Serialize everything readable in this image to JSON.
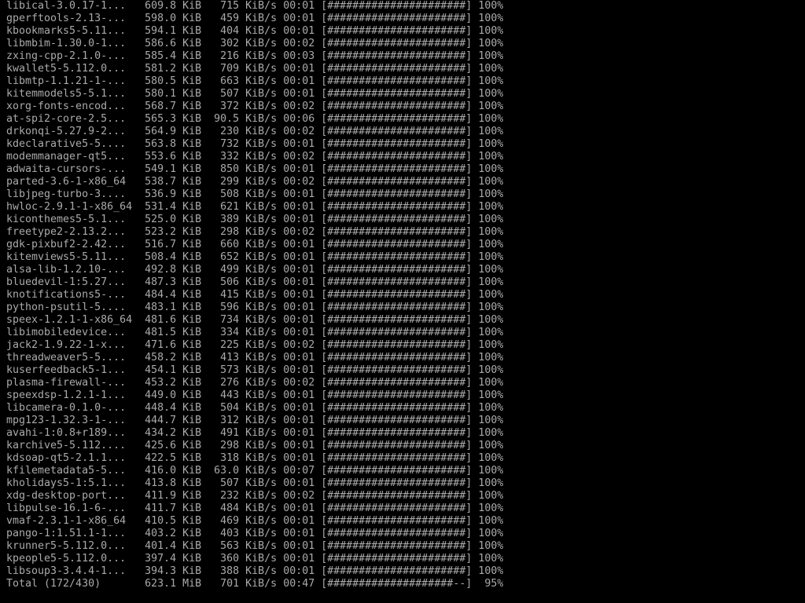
{
  "terminal": {
    "fg_color": "#aaaaaa",
    "bg_color": "#000000",
    "rows": [
      {
        "name": "libical-3.0.17-1...",
        "size": "609.8 KiB",
        "rate": "715 KiB/s",
        "time": "00:01",
        "percent": 100
      },
      {
        "name": "gperftools-2.13-...",
        "size": "598.0 KiB",
        "rate": "459 KiB/s",
        "time": "00:01",
        "percent": 100
      },
      {
        "name": "kbookmarks5-5.11...",
        "size": "594.1 KiB",
        "rate": "404 KiB/s",
        "time": "00:01",
        "percent": 100
      },
      {
        "name": "libmbim-1.30.0-1...",
        "size": "586.6 KiB",
        "rate": "302 KiB/s",
        "time": "00:02",
        "percent": 100
      },
      {
        "name": "zxing-cpp-2.1.0-...",
        "size": "585.4 KiB",
        "rate": "216 KiB/s",
        "time": "00:03",
        "percent": 100
      },
      {
        "name": "kwallet5-5.112.0...",
        "size": "581.2 KiB",
        "rate": "709 KiB/s",
        "time": "00:01",
        "percent": 100
      },
      {
        "name": "libmtp-1.1.21-1-...",
        "size": "580.5 KiB",
        "rate": "663 KiB/s",
        "time": "00:01",
        "percent": 100
      },
      {
        "name": "kitemmodels5-5.1...",
        "size": "580.1 KiB",
        "rate": "507 KiB/s",
        "time": "00:01",
        "percent": 100
      },
      {
        "name": "xorg-fonts-encod...",
        "size": "568.7 KiB",
        "rate": "372 KiB/s",
        "time": "00:02",
        "percent": 100
      },
      {
        "name": "at-spi2-core-2.5...",
        "size": "565.3 KiB",
        "rate": "90.5 KiB/s",
        "time": "00:06",
        "percent": 100
      },
      {
        "name": "drkonqi-5.27.9-2...",
        "size": "564.9 KiB",
        "rate": "230 KiB/s",
        "time": "00:02",
        "percent": 100
      },
      {
        "name": "kdeclarative5-5....",
        "size": "563.8 KiB",
        "rate": "732 KiB/s",
        "time": "00:01",
        "percent": 100
      },
      {
        "name": "modemmanager-qt5...",
        "size": "553.6 KiB",
        "rate": "332 KiB/s",
        "time": "00:02",
        "percent": 100
      },
      {
        "name": "adwaita-cursors-...",
        "size": "549.1 KiB",
        "rate": "850 KiB/s",
        "time": "00:01",
        "percent": 100
      },
      {
        "name": "parted-3.6-1-x86_64",
        "size": "538.7 KiB",
        "rate": "299 KiB/s",
        "time": "00:02",
        "percent": 100
      },
      {
        "name": "libjpeg-turbo-3....",
        "size": "536.9 KiB",
        "rate": "508 KiB/s",
        "time": "00:01",
        "percent": 100
      },
      {
        "name": "hwloc-2.9.1-1-x86_64",
        "size": "531.4 KiB",
        "rate": "621 KiB/s",
        "time": "00:01",
        "percent": 100
      },
      {
        "name": "kiconthemes5-5.1...",
        "size": "525.0 KiB",
        "rate": "389 KiB/s",
        "time": "00:01",
        "percent": 100
      },
      {
        "name": "freetype2-2.13.2...",
        "size": "523.2 KiB",
        "rate": "298 KiB/s",
        "time": "00:02",
        "percent": 100
      },
      {
        "name": "gdk-pixbuf2-2.42...",
        "size": "516.7 KiB",
        "rate": "660 KiB/s",
        "time": "00:01",
        "percent": 100
      },
      {
        "name": "kitemviews5-5.11...",
        "size": "508.4 KiB",
        "rate": "652 KiB/s",
        "time": "00:01",
        "percent": 100
      },
      {
        "name": "alsa-lib-1.2.10-...",
        "size": "492.8 KiB",
        "rate": "499 KiB/s",
        "time": "00:01",
        "percent": 100
      },
      {
        "name": "bluedevil-1:5.27...",
        "size": "487.3 KiB",
        "rate": "506 KiB/s",
        "time": "00:01",
        "percent": 100
      },
      {
        "name": "knotifications5-...",
        "size": "484.4 KiB",
        "rate": "415 KiB/s",
        "time": "00:01",
        "percent": 100
      },
      {
        "name": "python-psutil-5....",
        "size": "483.1 KiB",
        "rate": "596 KiB/s",
        "time": "00:01",
        "percent": 100
      },
      {
        "name": "speex-1.2.1-1-x86_64",
        "size": "481.6 KiB",
        "rate": "734 KiB/s",
        "time": "00:01",
        "percent": 100
      },
      {
        "name": "libimobiledevice...",
        "size": "481.5 KiB",
        "rate": "334 KiB/s",
        "time": "00:01",
        "percent": 100
      },
      {
        "name": "jack2-1.9.22-1-x...",
        "size": "471.6 KiB",
        "rate": "225 KiB/s",
        "time": "00:02",
        "percent": 100
      },
      {
        "name": "threadweaver5-5....",
        "size": "458.2 KiB",
        "rate": "413 KiB/s",
        "time": "00:01",
        "percent": 100
      },
      {
        "name": "kuserfeedback5-1...",
        "size": "454.1 KiB",
        "rate": "573 KiB/s",
        "time": "00:01",
        "percent": 100
      },
      {
        "name": "plasma-firewall-...",
        "size": "453.2 KiB",
        "rate": "276 KiB/s",
        "time": "00:02",
        "percent": 100
      },
      {
        "name": "speexdsp-1.2.1-1...",
        "size": "449.0 KiB",
        "rate": "443 KiB/s",
        "time": "00:01",
        "percent": 100
      },
      {
        "name": "libcamera-0.1.0-...",
        "size": "448.4 KiB",
        "rate": "504 KiB/s",
        "time": "00:01",
        "percent": 100
      },
      {
        "name": "mpg123-1.32.3-1-...",
        "size": "444.7 KiB",
        "rate": "312 KiB/s",
        "time": "00:01",
        "percent": 100
      },
      {
        "name": "avahi-1:0.8+r189...",
        "size": "434.2 KiB",
        "rate": "491 KiB/s",
        "time": "00:01",
        "percent": 100
      },
      {
        "name": "karchive5-5.112....",
        "size": "425.6 KiB",
        "rate": "298 KiB/s",
        "time": "00:01",
        "percent": 100
      },
      {
        "name": "kdsoap-qt5-2.1.1...",
        "size": "422.5 KiB",
        "rate": "318 KiB/s",
        "time": "00:01",
        "percent": 100
      },
      {
        "name": "kfilemetadata5-5...",
        "size": "416.0 KiB",
        "rate": "63.0 KiB/s",
        "time": "00:07",
        "percent": 100
      },
      {
        "name": "kholidays5-1:5.1...",
        "size": "413.8 KiB",
        "rate": "507 KiB/s",
        "time": "00:01",
        "percent": 100
      },
      {
        "name": "xdg-desktop-port...",
        "size": "411.9 KiB",
        "rate": "232 KiB/s",
        "time": "00:02",
        "percent": 100
      },
      {
        "name": "libpulse-16.1-6-...",
        "size": "411.7 KiB",
        "rate": "484 KiB/s",
        "time": "00:01",
        "percent": 100
      },
      {
        "name": "vmaf-2.3.1-1-x86_64",
        "size": "410.5 KiB",
        "rate": "469 KiB/s",
        "time": "00:01",
        "percent": 100
      },
      {
        "name": "pango-1:1.51.1-1...",
        "size": "403.2 KiB",
        "rate": "403 KiB/s",
        "time": "00:01",
        "percent": 100
      },
      {
        "name": "krunner5-5.112.0...",
        "size": "401.4 KiB",
        "rate": "563 KiB/s",
        "time": "00:01",
        "percent": 100
      },
      {
        "name": "kpeople5-5.112.0...",
        "size": "397.4 KiB",
        "rate": "360 KiB/s",
        "time": "00:01",
        "percent": 100
      },
      {
        "name": "libsoup3-3.4.4-1...",
        "size": "394.3 KiB",
        "rate": "388 KiB/s",
        "time": "00:01",
        "percent": 100
      },
      {
        "name": "Total (172/430)",
        "size": "623.1 MiB",
        "rate": "701 KiB/s",
        "time": "00:47",
        "percent": 95
      }
    ]
  }
}
